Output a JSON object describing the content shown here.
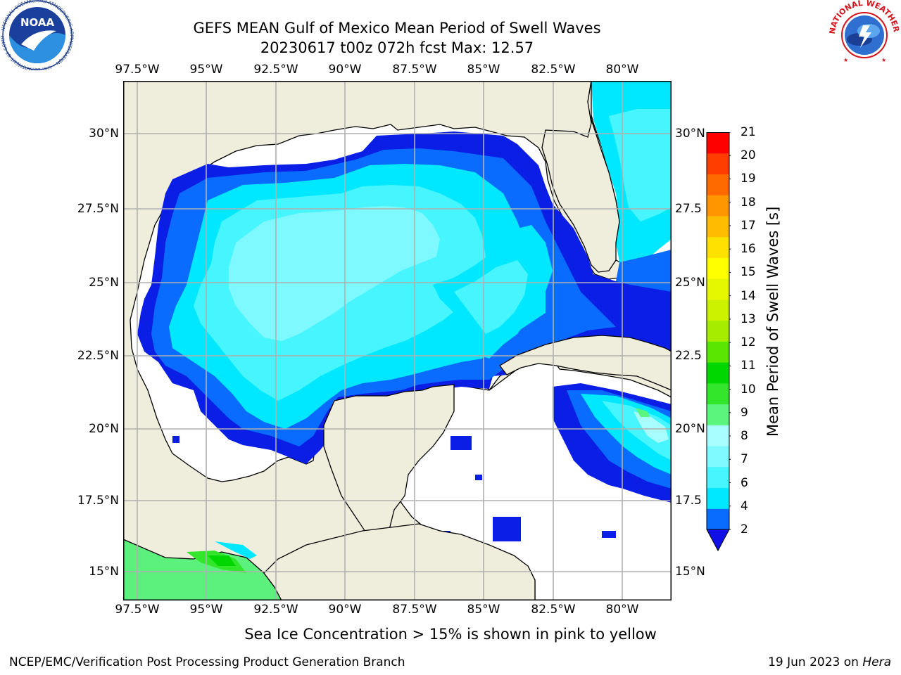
{
  "title": {
    "line1": "GEFS MEAN Gulf of Mexico Mean Period of Swell Waves",
    "line2": "20230617 t00z 072h fcst   Max: 12.57"
  },
  "map": {
    "lon_labels": [
      "97.5°W",
      "95°W",
      "92.5°W",
      "90°W",
      "87.5°W",
      "85°W",
      "82.5°W",
      "80°W"
    ],
    "lat_labels_left": [
      "30°N",
      "27.5°N",
      "25°N",
      "22.5°N",
      "20°N",
      "17.5°N",
      "15°N"
    ],
    "lat_labels_right": [
      "30°N",
      "27.5",
      "25°N",
      "22.5",
      "20°N",
      "17.5",
      "15°N"
    ],
    "extent": {
      "lon_min": -98.1,
      "lon_max": -78.4,
      "lat_min": 14.0,
      "lat_max": 31.8
    },
    "grid": true,
    "land_color": "#efeedd",
    "no_data_color": "#ffffff"
  },
  "colorbar": {
    "label": "Mean Period of Swell Waves [s]",
    "tick_labels": [
      "2",
      "4",
      "6",
      "7",
      "8",
      "9",
      "10",
      "11",
      "12",
      "13",
      "14",
      "15",
      "16",
      "17",
      "18",
      "19",
      "20",
      "21"
    ],
    "colors": [
      "#0a6cff",
      "#00e8ff",
      "#47f5ff",
      "#7df9ff",
      "#a8fdff",
      "#5bf47c",
      "#33e62c",
      "#00d600",
      "#5ae600",
      "#a6ec00",
      "#ccf200",
      "#e6f800",
      "#ffff00",
      "#ffe100",
      "#ffbc00",
      "#ff9600",
      "#ff6a00",
      "#ff3d00",
      "#ff0000"
    ],
    "extend_color": "#1010e6"
  },
  "legend_note": "Sea Ice Concentration > 15% is shown in pink to yellow",
  "footer": {
    "left": "NCEP/EMC/Verification Post Processing Product Generation Branch",
    "date": "19 Jun 2023 on ",
    "machine": "Hera"
  },
  "logos": {
    "noaa_text": "NOAA",
    "noaa_ring": "NATIONAL OCEANIC AND ATMOSPHERIC ADMINISTRATION • U.S. DEPARTMENT OF COMMERCE",
    "nws_ring": "NATIONAL WEATHER SERVICE"
  }
}
